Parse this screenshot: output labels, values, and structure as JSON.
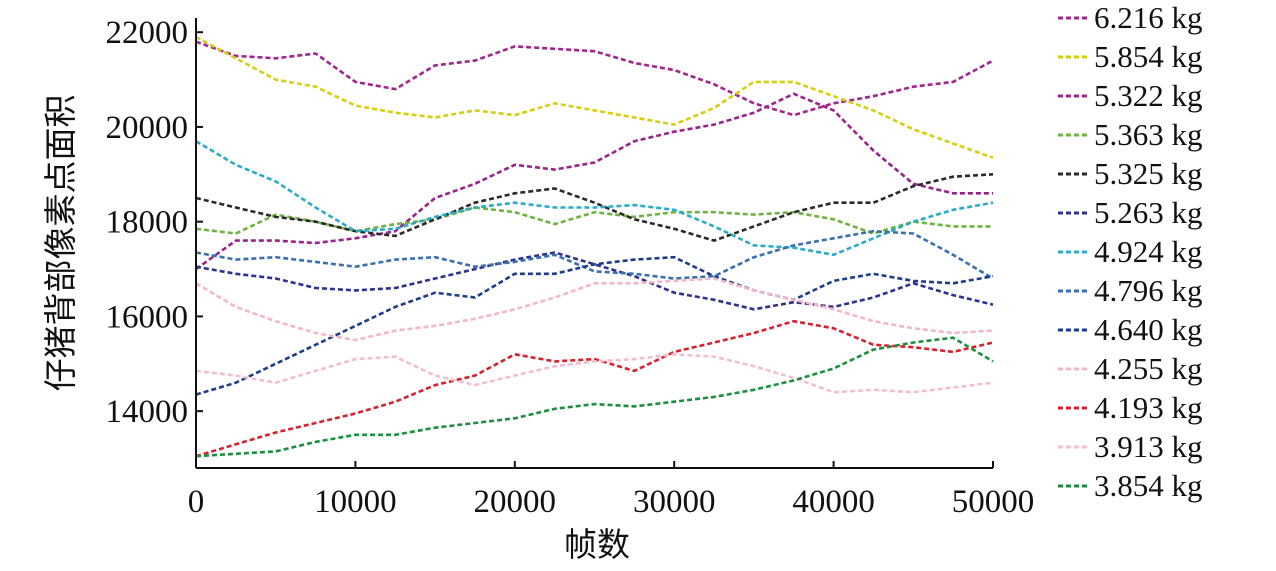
{
  "chart_data": {
    "type": "line",
    "title": "",
    "xlabel": "帧数",
    "ylabel": "仔猪背部像素点面积",
    "xlim": [
      0,
      50000
    ],
    "ylim": [
      12800,
      22300
    ],
    "x_ticks": [
      "0",
      "10000",
      "20000",
      "30000",
      "40000",
      "50000"
    ],
    "y_ticks": [
      "14000",
      "16000",
      "18000",
      "20000",
      "22000"
    ],
    "grid": false,
    "legend_position": "right",
    "line_style": "dashed",
    "x": [
      0,
      2500,
      5000,
      7500,
      10000,
      12500,
      15000,
      17500,
      20000,
      22500,
      25000,
      27500,
      30000,
      32500,
      35000,
      37500,
      40000,
      42500,
      45000,
      47500,
      50000
    ],
    "series": [
      {
        "name": "6.216 kg",
        "color": "#a2248d",
        "values": [
          21800,
          21500,
          21450,
          21550,
          20950,
          20800,
          21300,
          21400,
          21700,
          21650,
          21600,
          21350,
          21200,
          20900,
          20500,
          20250,
          20500,
          20650,
          20850,
          20950,
          21400
        ]
      },
      {
        "name": "5.854 kg",
        "color": "#d6cf0e",
        "values": [
          21900,
          21450,
          21000,
          20850,
          20450,
          20300,
          20200,
          20350,
          20250,
          20500,
          20350,
          20200,
          20050,
          20400,
          20950,
          20950,
          20650,
          20350,
          19950,
          19650,
          19350
        ]
      },
      {
        "name": "5.322 kg",
        "color": "#99238c",
        "values": [
          17000,
          17600,
          17600,
          17550,
          17650,
          17800,
          18500,
          18800,
          19200,
          19100,
          19250,
          19700,
          19900,
          20050,
          20300,
          20700,
          20350,
          19500,
          18800,
          18600,
          18600
        ]
      },
      {
        "name": "5.363 kg",
        "color": "#6db33f",
        "values": [
          17850,
          17750,
          18150,
          18000,
          17800,
          17950,
          18050,
          18300,
          18200,
          17950,
          18200,
          18100,
          18200,
          18200,
          18150,
          18200,
          18050,
          17750,
          18000,
          17900,
          17900
        ]
      },
      {
        "name": "5.325 kg",
        "color": "#2a2a2a",
        "values": [
          18500,
          18300,
          18100,
          18000,
          17800,
          17700,
          18050,
          18400,
          18600,
          18700,
          18400,
          18050,
          17850,
          17600,
          17900,
          18200,
          18400,
          18400,
          18750,
          18950,
          19000
        ]
      },
      {
        "name": "5.263 kg",
        "color": "#2e3192",
        "values": [
          17050,
          16900,
          16800,
          16600,
          16550,
          16600,
          16800,
          17000,
          17200,
          17350,
          17100,
          16850,
          16500,
          16350,
          16150,
          16300,
          16200,
          16400,
          16700,
          16450,
          16250
        ]
      },
      {
        "name": "4.924 kg",
        "color": "#29abc9",
        "values": [
          19700,
          19200,
          18850,
          18300,
          17800,
          17850,
          18100,
          18300,
          18400,
          18300,
          18300,
          18350,
          18250,
          17900,
          17500,
          17450,
          17300,
          17650,
          18000,
          18250,
          18400
        ]
      },
      {
        "name": "4.796 kg",
        "color": "#3a6fb0",
        "values": [
          17350,
          17200,
          17250,
          17150,
          17050,
          17200,
          17250,
          17050,
          17150,
          17300,
          16950,
          16900,
          16800,
          16850,
          17250,
          17500,
          17650,
          17800,
          17750,
          17300,
          16800
        ]
      },
      {
        "name": "4.640 kg",
        "color": "#1d3d8a",
        "values": [
          14350,
          14600,
          15000,
          15400,
          15800,
          16200,
          16500,
          16400,
          16900,
          16900,
          17100,
          17200,
          17250,
          16850,
          16550,
          16350,
          16750,
          16900,
          16750,
          16700,
          16850
        ]
      },
      {
        "name": "4.255 kg",
        "color": "#f4b6c8",
        "values": [
          16700,
          16200,
          15900,
          15650,
          15500,
          15700,
          15800,
          15950,
          16150,
          16400,
          16700,
          16700,
          16750,
          16800,
          16550,
          16350,
          16150,
          15900,
          15750,
          15650,
          15700
        ]
      },
      {
        "name": "4.193 kg",
        "color": "#d7212f",
        "values": [
          13050,
          13300,
          13550,
          13750,
          13950,
          14200,
          14550,
          14750,
          15200,
          15050,
          15100,
          14850,
          15250,
          15450,
          15650,
          15900,
          15750,
          15400,
          15350,
          15250,
          15450
        ]
      },
      {
        "name": "3.913 kg",
        "color": "#f2bfd0",
        "values": [
          14850,
          14750,
          14600,
          14850,
          15100,
          15150,
          14750,
          14550,
          14750,
          14950,
          15050,
          15100,
          15200,
          15150,
          14950,
          14700,
          14400,
          14450,
          14400,
          14500,
          14600
        ]
      },
      {
        "name": "3.854 kg",
        "color": "#1b8f3f",
        "values": [
          13050,
          13100,
          13150,
          13350,
          13500,
          13500,
          13650,
          13750,
          13850,
          14050,
          14150,
          14100,
          14200,
          14300,
          14450,
          14650,
          14900,
          15300,
          15450,
          15550,
          15050
        ]
      }
    ]
  }
}
